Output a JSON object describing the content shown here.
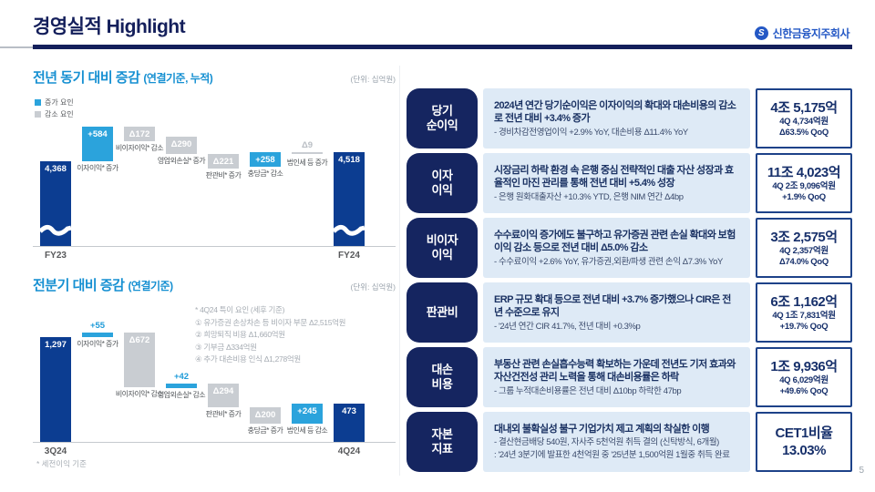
{
  "header": {
    "title": "경영실적 Highlight",
    "company": "신한금융지주회사",
    "logo_letter": "S",
    "page_number": "5",
    "brand_blue": "#2458C5",
    "navy": "#141F5B"
  },
  "chart_data": [
    {
      "type": "waterfall",
      "title": "전년 동기 대비 증감",
      "title_suffix": "(연결기준, 누적)",
      "unit_label": "(단위: 십억원)",
      "legend": [
        {
          "label": "증가 요인",
          "color": "#2BA3DC"
        },
        {
          "label": "감소 요인",
          "color": "#C9CDD2"
        }
      ],
      "colors": {
        "increase": "#2BA3DC",
        "decrease": "#C9CDD2",
        "total": "#0C3D91"
      },
      "axis_break": true,
      "start": {
        "label": "FY23",
        "value": 4368,
        "display": "4,368"
      },
      "steps": [
        {
          "label": "이자이익* 증가",
          "delta": 584,
          "display": "+584"
        },
        {
          "label": "비이자이익* 감소",
          "delta": -172,
          "display": "Δ172"
        },
        {
          "label": "영업외손실* 증가",
          "delta": -290,
          "display": "Δ290"
        },
        {
          "label": "판관비* 증가",
          "delta": -221,
          "display": "Δ221"
        },
        {
          "label": "충당금* 감소",
          "delta": 258,
          "display": "+258"
        },
        {
          "label": "법인세 등 증가",
          "delta": -9,
          "display": "Δ9"
        }
      ],
      "end": {
        "label": "FY24",
        "value": 4518,
        "display": "4,518"
      }
    },
    {
      "type": "waterfall",
      "title": "전분기 대비 증감",
      "title_suffix": "(연결기준)",
      "unit_label": "(단위: 십억원)",
      "colors": {
        "increase": "#2BA3DC",
        "decrease": "#C9CDD2",
        "total": "#0C3D91"
      },
      "axis_break": false,
      "start": {
        "label": "3Q24",
        "value": 1297,
        "display": "1,297"
      },
      "steps": [
        {
          "label": "이자이익* 증가",
          "delta": 55,
          "display": "+55"
        },
        {
          "label": "비이자이익* 감소",
          "delta": -672,
          "display": "Δ672"
        },
        {
          "label": "영업외손실* 감소",
          "delta": 42,
          "display": "+42"
        },
        {
          "label": "판관비* 증가",
          "delta": -294,
          "display": "Δ294"
        },
        {
          "label": "충당금* 증가",
          "delta": -200,
          "display": "Δ200"
        },
        {
          "label": "법인세 등 감소",
          "delta": 245,
          "display": "+245"
        }
      ],
      "end": {
        "label": "4Q24",
        "value": 473,
        "display": "473"
      },
      "annotation": [
        "* 4Q24 특이 요인 (세후 기준)",
        "① 유가증권 손상차손 등 비이자 부문 Δ2,515억원",
        "② 희망퇴직 비용 Δ1,660억원",
        "③ 기부금 Δ334억원",
        "④ 추가 대손비용 인식 Δ1,278억원"
      ],
      "footnote": "* 세전이익 기준"
    }
  ],
  "rows": [
    {
      "pill": [
        "당기",
        "순이익"
      ],
      "main": "2024년 연간 당기순이익은 이자이익의 확대와 대손비용의 감소로 전년 대비 +3.4% 증가",
      "sub": [
        "- 경비차감전영업이익 +2.9% YoY, 대손비용 Δ11.4% YoY"
      ],
      "box": [
        "4조 5,175억",
        "4Q 4,734억원",
        "Δ63.5% QoQ"
      ]
    },
    {
      "pill": [
        "이자",
        "이익"
      ],
      "main": "시장금리 하락 환경 속 은행 중심 전략적인 대출 자산 성장과 효율적인 마진 관리를 통해 전년 대비 +5.4% 성장",
      "sub": [
        "- 은행 원화대출자산 +10.3% YTD, 은행 NIM 연간 Δ4bp"
      ],
      "box": [
        "11조 4,023억",
        "4Q 2조 9,096억원",
        "+1.9% QoQ"
      ]
    },
    {
      "pill": [
        "비이자",
        "이익"
      ],
      "main": "수수료이익 증가에도 불구하고 유가증권 관련 손실 확대와 보험이익 감소 등으로 전년 대비 Δ5.0% 감소",
      "sub": [
        "- 수수료이익 +2.6% YoY, 유가증권,외환/파생 관련 손익 Δ7.3% YoY"
      ],
      "box": [
        "3조 2,575억",
        "4Q 2,357억원",
        "Δ74.0% QoQ"
      ]
    },
    {
      "pill": [
        "판관비"
      ],
      "main": "ERP 규모 확대 등으로 전년 대비 +3.7% 증가했으나 CIR은 전년 수준으로 유지",
      "sub": [
        "- '24년 연간 CIR 41.7%, 전년 대비 +0.3%p"
      ],
      "box": [
        "6조 1,162억",
        "4Q 1조 7,831억원",
        "+19.7% QoQ"
      ]
    },
    {
      "pill": [
        "대손",
        "비용"
      ],
      "main": "부동산 관련 손실흡수능력 확보하는 가운데 전년도 기저 효과와 자산건전성 관리 노력을 통해 대손비용률은 하락",
      "sub": [
        "- 그룹 누적대손비용률은 전년 대비 Δ10bp 하락한 47bp"
      ],
      "box": [
        "1조 9,936억",
        "4Q 6,029억원",
        "+49.6% QoQ"
      ]
    },
    {
      "pill": [
        "자본",
        "지표"
      ],
      "main": "대내외 불확실성 불구 기업가치 제고 계획의 착실한 이행",
      "sub": [
        "- 결산현금배당 540원, 자사주 5천억원 취득 결의 (신탁방식, 6개월)",
        ": '24년 3분기에 발표한 4천억원 중 '25년분 1,500억원 1월중 취득 완료"
      ],
      "box": [
        "CET1비율",
        "13.03%"
      ]
    }
  ]
}
